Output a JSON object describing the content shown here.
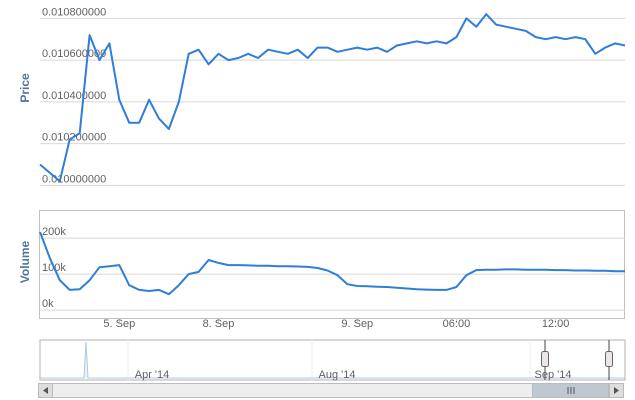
{
  "chart_data": {
    "type": "line",
    "grid": true,
    "color": "#2f7ed8",
    "categories": [
      null,
      null,
      null,
      null,
      null,
      null,
      null,
      null,
      "5. Sep",
      null,
      null,
      null,
      null,
      null,
      null,
      null,
      null,
      null,
      "8. Sep",
      null,
      null,
      null,
      null,
      null,
      null,
      null,
      null,
      null,
      null,
      null,
      null,
      null,
      "9. Sep",
      null,
      null,
      null,
      null,
      null,
      null,
      null,
      null,
      null,
      "06:00",
      null,
      null,
      null,
      null,
      null,
      null,
      null,
      null,
      null,
      "12:00",
      null,
      null,
      null,
      null,
      null,
      null,
      null
    ],
    "panels": [
      {
        "y_label": "Price",
        "ylim": [
          0.00993,
          0.01084
        ],
        "yticks": [
          {
            "value": 0.01,
            "label": "0.010000000"
          },
          {
            "value": 0.0102,
            "label": "0.010200000"
          },
          {
            "value": 0.0104,
            "label": "0.010400000"
          },
          {
            "value": 0.0106,
            "label": "0.010600000"
          },
          {
            "value": 0.0108,
            "label": "0.010800000"
          }
        ],
        "values": [
          0.0101,
          0.01006,
          0.01002,
          0.01022,
          0.01025,
          0.01072,
          0.0106,
          0.01068,
          0.01041,
          0.0103,
          0.0103,
          0.01041,
          0.01032,
          0.01027,
          0.0104,
          0.01063,
          0.01065,
          0.01058,
          0.01063,
          0.0106,
          0.01061,
          0.01063,
          0.01061,
          0.01065,
          0.01064,
          0.01063,
          0.01065,
          0.01061,
          0.01066,
          0.01066,
          0.01064,
          0.01065,
          0.01066,
          0.01065,
          0.01066,
          0.01064,
          0.01067,
          0.01068,
          0.01069,
          0.01068,
          0.01069,
          0.01068,
          0.01071,
          0.0108,
          0.01076,
          0.01082,
          0.01077,
          0.01076,
          0.01075,
          0.01074,
          0.01071,
          0.0107,
          0.01071,
          0.0107,
          0.01071,
          0.0107,
          0.01063,
          0.01066,
          0.01068,
          0.01067
        ]
      },
      {
        "y_label": "Volume",
        "ylim": [
          -22000,
          278000
        ],
        "yticks": [
          {
            "value": 0,
            "label": "0k"
          },
          {
            "value": 100000,
            "label": "100k"
          },
          {
            "value": 200000,
            "label": "200k"
          }
        ],
        "values": [
          217000,
          144000,
          83000,
          56000,
          58000,
          83000,
          119000,
          122000,
          125000,
          69000,
          56000,
          53000,
          56000,
          44000,
          69000,
          100000,
          106000,
          139000,
          131000,
          125000,
          125000,
          124000,
          123000,
          123000,
          122000,
          122000,
          121000,
          120000,
          117000,
          110000,
          97000,
          72000,
          67000,
          66000,
          65000,
          64000,
          62000,
          60000,
          58000,
          57000,
          56000,
          56000,
          64000,
          97000,
          111000,
          112000,
          112000,
          113000,
          113000,
          112000,
          112000,
          112000,
          111000,
          111000,
          110000,
          110000,
          109000,
          109000,
          108000,
          108000
        ]
      }
    ]
  },
  "navigator": {
    "labels": [
      "Apr '14",
      "Aug '14",
      "Sep '14"
    ]
  }
}
